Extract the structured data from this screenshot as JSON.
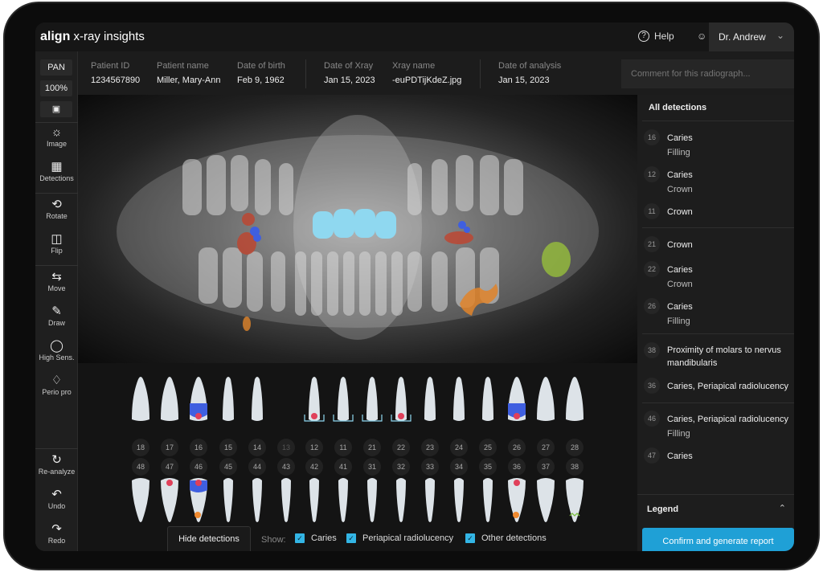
{
  "app": {
    "brand": "align",
    "title": "x-ray insights"
  },
  "header": {
    "help": "Help",
    "user": "Dr. Andrew"
  },
  "toolbar": {
    "mode": "PAN",
    "zoom": "100%",
    "tools": [
      "Image",
      "Detections",
      "Rotate",
      "Flip",
      "Move",
      "Draw",
      "High Sens.",
      "Perio pro"
    ],
    "bottom": [
      "Re-analyze",
      "Undo",
      "Redo"
    ]
  },
  "info": {
    "fields": [
      {
        "label": "Patient ID",
        "value": "1234567890"
      },
      {
        "label": "Patient name",
        "value": "Miller, Mary-Ann"
      },
      {
        "label": "Date of birth",
        "value": "Feb 9, 1962"
      },
      {
        "label": "Date of Xray",
        "value": "Jan 15, 2023"
      },
      {
        "label": "Xray name",
        "value": "-euPDTijKdeZ.jpg"
      },
      {
        "label": "Date of analysis",
        "value": "Jan 15, 2023"
      }
    ],
    "comment_placeholder": "Comment for this radiograph..."
  },
  "chart": {
    "upper": [
      "18",
      "17",
      "16",
      "15",
      "14",
      "13",
      "12",
      "11",
      "21",
      "22",
      "23",
      "24",
      "25",
      "26",
      "27",
      "28"
    ],
    "lower": [
      "48",
      "47",
      "46",
      "45",
      "44",
      "43",
      "42",
      "41",
      "31",
      "32",
      "33",
      "34",
      "35",
      "36",
      "37",
      "38"
    ],
    "hide_label": "Hide detections",
    "show_label": "Show:",
    "filters": [
      {
        "label": "Caries",
        "checked": true
      },
      {
        "label": "Periapical radiolucency",
        "checked": true
      },
      {
        "label": "Other detections",
        "checked": true
      }
    ]
  },
  "panel": {
    "title": "All detections",
    "items": [
      {
        "tooth": "16",
        "lines": [
          "Caries",
          "Filling"
        ]
      },
      {
        "tooth": "12",
        "lines": [
          "Caries",
          "Crown"
        ]
      },
      {
        "tooth": "11",
        "lines": [
          "Crown"
        ]
      },
      {
        "tooth": "21",
        "lines": [
          "Crown"
        ]
      },
      {
        "tooth": "22",
        "lines": [
          "Caries",
          "Crown"
        ]
      },
      {
        "tooth": "26",
        "lines": [
          "Caries",
          "Filling"
        ]
      },
      {
        "tooth": "38",
        "lines": [
          "Proximity of molars to nervus mandibularis"
        ]
      },
      {
        "tooth": "36",
        "lines": [
          "Caries, Periapical radiolucency"
        ]
      },
      {
        "tooth": "46",
        "lines": [
          "Caries, Periapical radiolucency",
          "Filling"
        ]
      },
      {
        "tooth": "47",
        "lines": [
          "Caries"
        ]
      }
    ],
    "legend": "Legend",
    "confirm": "Confirm and generate report"
  },
  "colors": {
    "accent": "#1fa0d6",
    "caries": "#e0405a",
    "filling": "#3f5fe0",
    "crown": "#8fd8f0",
    "periapical": "#f08a30",
    "other": "#7cc040"
  }
}
